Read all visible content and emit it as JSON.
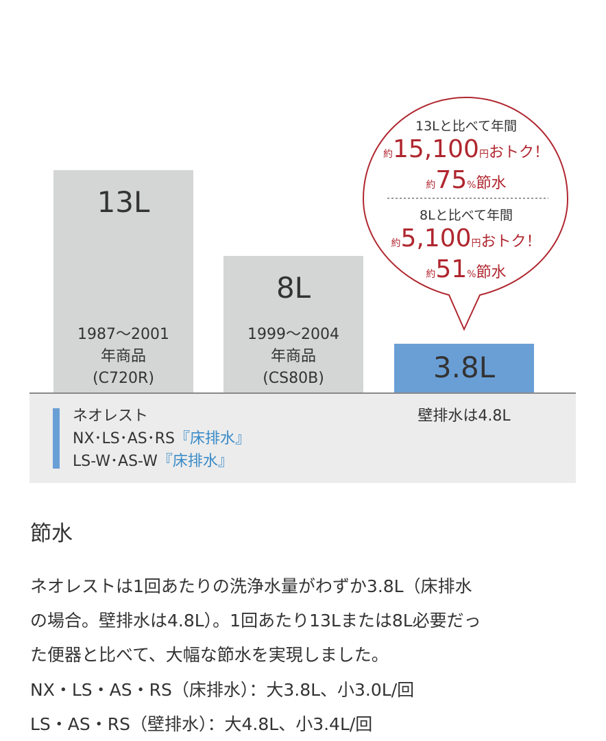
{
  "chart_data": {
    "type": "bar",
    "categories": [
      "1987〜2001 年商品 (C720R)",
      "1999〜2004 年商品 (CS80B)",
      "ネオレスト"
    ],
    "values": [
      13,
      8,
      3.8
    ],
    "unit": "L",
    "value_labels": [
      "13L",
      "8L",
      "3.8L"
    ],
    "captions": [
      [
        "1987〜2001",
        "年商品",
        "(C720R)"
      ],
      [
        "1999〜2004",
        "年商品",
        "(CS80B)"
      ]
    ],
    "colors": [
      "#d4d5d5",
      "#d4d5d5",
      "#6a9fd6"
    ],
    "note": "壁排水は4.8L",
    "legend": {
      "line1": "ネオレスト",
      "line2a": "NX･LS･AS･RS",
      "line2b": "『床排水』",
      "line3a": "LS-W･AS-W",
      "line3b": "『床排水』",
      "color": "#6a9fd6"
    },
    "callout": {
      "color": "#b0262f",
      "a_head": "13Lと比べて年間",
      "a_yen_pre": "約",
      "a_yen": "15,100",
      "a_yen_unit": "円",
      "a_yen_post": "おトク！",
      "a_pct_pre": "約",
      "a_pct": "75",
      "a_pct_unit": "%",
      "a_pct_post": "節水",
      "b_head": "8Lと比べて年間",
      "b_yen_pre": "約",
      "b_yen": "5,100",
      "b_yen_unit": "円",
      "b_yen_post": "おトク！",
      "b_pct_pre": "約",
      "b_pct": "51",
      "b_pct_unit": "%",
      "b_pct_post": "節水"
    }
  },
  "section": {
    "title": "節水",
    "lines": [
      "ネオレストは1回あたりの洗浄水量がわずか3.8L（床排水",
      "の場合。壁排水は4.8L）。1回あたり13Lまたは8L必要だっ",
      "た便器と比べて、大幅な節水を実現しました。",
      "NX・LS・AS・RS（床排水）：大3.8L、小3.0L/回",
      "LS・AS・RS（壁排水）：大4.8L、小3.4L/回"
    ]
  }
}
